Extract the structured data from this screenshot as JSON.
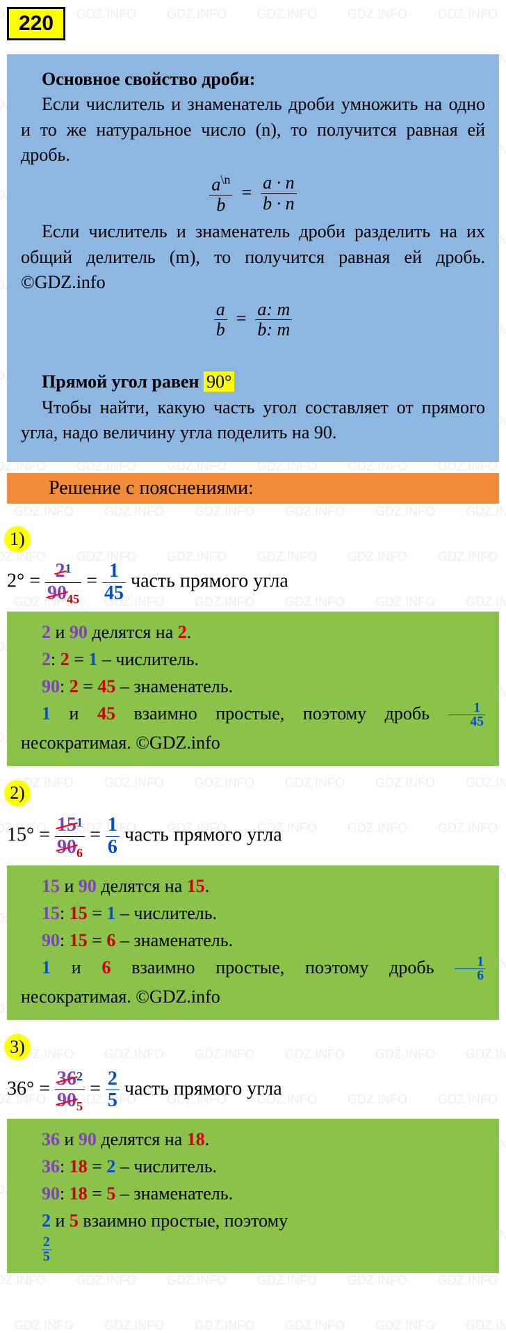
{
  "watermark_text": "GDZ.INFO",
  "problem_number": "220",
  "theory": {
    "heading": "Основное свойство дроби:",
    "para1": "Если числитель и знаменатель дроби умножить на одно и то же натуральное число (n), то получится равная ей дробь.",
    "formula1_left_num": "a",
    "formula1_left_sup": "\\n",
    "formula1_left_den": "b",
    "formula1_right_num": "a · n",
    "formula1_right_den": "b · n",
    "para2": "Если числитель и знаменатель дроби разделить на их общий делитель (m), то получится равная ей дробь. ©GDZ.info",
    "formula2_left_num": "a",
    "formula2_left_den": "b",
    "formula2_right_num": "a: m",
    "formula2_right_den": "b: m",
    "right_angle_label": "Прямой угол равен ",
    "right_angle_value": "90°",
    "hint": "Чтобы найти, какую часть угол составляет от прямого угла, надо величину угла поделить на 90."
  },
  "solution_header": "Решение с пояснениями:",
  "items": [
    {
      "n": "1)",
      "deg": "2°",
      "orig_num": "2",
      "orig_den": "90",
      "red_num_sup": "1",
      "red_den_sub": "45",
      "result_num": "1",
      "result_den": "45",
      "phrase": " часть прямого угла",
      "g1": {
        "a": "2",
        "b": "90",
        "d": "2"
      },
      "g2": {
        "a": "2",
        "d": "2",
        "r": "1",
        "role": " – числитель."
      },
      "g3": {
        "a": "90",
        "d": "2",
        "r": "45",
        "role": " – знаменатель."
      },
      "g4_a": "1",
      "g4_b": "45",
      "g4_text": " взаимно простые, поэтому дробь ",
      "g4_end": " несократимая. ©GDZ.info"
    },
    {
      "n": "2)",
      "deg": "15°",
      "orig_num": "15",
      "orig_den": "90",
      "red_num_sup": "1",
      "red_den_sub": "6",
      "result_num": "1",
      "result_den": "6",
      "phrase": " часть прямого угла",
      "g1": {
        "a": "15",
        "b": "90",
        "d": "15"
      },
      "g2": {
        "a": "15",
        "d": "15",
        "r": "1",
        "role": " – числитель."
      },
      "g3": {
        "a": "90",
        "d": "15",
        "r": "6",
        "role": " – знаменатель."
      },
      "g4_a": "1",
      "g4_b": "6",
      "g4_text": " взаимно простые, поэтому дробь ",
      "g4_end": " несократимая. ©GDZ.info"
    },
    {
      "n": "3)",
      "deg": "36°",
      "orig_num": "36",
      "orig_den": "90",
      "red_num_sup": "2",
      "red_den_sub": "5",
      "result_num": "2",
      "result_den": "5",
      "phrase": " часть прямого угла",
      "g1": {
        "a": "36",
        "b": "90",
        "d": "18"
      },
      "g2": {
        "a": "36",
        "d": "18",
        "r": "2",
        "role": " – числитель."
      },
      "g3": {
        "a": "90",
        "d": "18",
        "r": "5",
        "role": " – знаменатель."
      },
      "g4_a": "2",
      "g4_b": "5",
      "g4_text": " взаимно простые, поэтому ",
      "g4_end": ""
    }
  ],
  "colors": {
    "badge_bg": "#ffff00",
    "blue_box": "#8db7e0",
    "orange_bar": "#f08c3a",
    "green_box": "#8bc34a",
    "purple": "#8040c0",
    "red": "#cc0000",
    "blue": "#0050cc"
  }
}
